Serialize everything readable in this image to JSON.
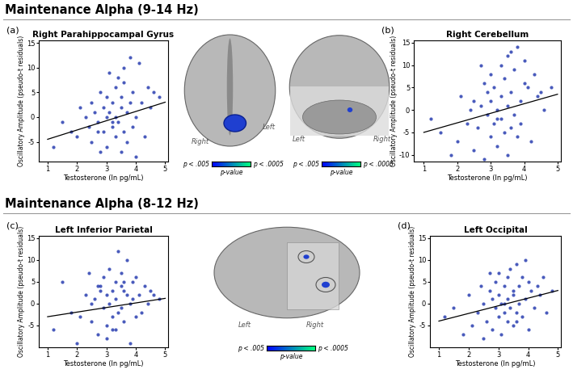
{
  "sections": [
    "Maintenance Alpha (9-14 Hz)",
    "Maintenance Alpha (8-12 Hz)"
  ],
  "chart_data": [
    {
      "type": "scatter",
      "panel": "(a)",
      "title": "Right Parahippocampal Gyrus",
      "x_label": "Testosterone (ln pg/mL)",
      "y_label": "Oscillatory Amplitude (pseudo-t residuals)",
      "color": "#2a3eb1",
      "x": [
        1.2,
        1.5,
        1.8,
        2.0,
        2.1,
        2.3,
        2.4,
        2.5,
        2.5,
        2.6,
        2.7,
        2.8,
        2.8,
        2.9,
        2.9,
        3.0,
        3.0,
        3.0,
        3.1,
        3.1,
        3.2,
        3.2,
        3.3,
        3.3,
        3.3,
        3.4,
        3.4,
        3.5,
        3.5,
        3.5,
        3.6,
        3.6,
        3.7,
        3.7,
        3.8,
        3.8,
        3.9,
        3.9,
        4.0,
        4.0,
        4.1,
        4.2,
        4.3,
        4.4,
        4.5,
        4.6,
        4.8,
        3.2,
        2.7,
        3.6
      ],
      "y": [
        -6,
        -1,
        -3,
        -4,
        2,
        0,
        -2,
        3,
        -5,
        1,
        -1,
        5,
        -7,
        2,
        -3,
        0,
        4,
        -6,
        1,
        9,
        -2,
        3,
        -4,
        6,
        0,
        -1,
        8,
        2,
        -7,
        4,
        -3,
        10,
        1,
        -5,
        3,
        12,
        -2,
        5,
        0,
        -8,
        11,
        3,
        -4,
        6,
        2,
        5,
        4,
        -1,
        -3,
        7
      ],
      "trend_line": {
        "x": [
          1,
          5
        ],
        "y": [
          -4.5,
          3
        ]
      },
      "xlim": [
        0.7,
        5.1
      ],
      "ylim": [
        -9,
        15.5
      ],
      "xticks": [
        1,
        2,
        3,
        4,
        5
      ],
      "yticks": [
        -5,
        0,
        5,
        10,
        15
      ]
    },
    {
      "type": "scatter",
      "panel": "(b)",
      "title": "Right Cerebellum",
      "x_label": "Testosterone (ln pg/mL)",
      "y_label": "Oscillatory Amplitude (pseudo-t residuals)",
      "color": "#2a3eb1",
      "x": [
        1.2,
        1.5,
        1.8,
        2.0,
        2.1,
        2.3,
        2.4,
        2.5,
        2.5,
        2.6,
        2.7,
        2.8,
        2.8,
        2.9,
        2.9,
        3.0,
        3.0,
        3.0,
        3.1,
        3.1,
        3.2,
        3.2,
        3.3,
        3.3,
        3.3,
        3.4,
        3.4,
        3.5,
        3.5,
        3.5,
        3.6,
        3.6,
        3.7,
        3.7,
        3.8,
        3.8,
        3.9,
        3.9,
        4.0,
        4.0,
        4.1,
        4.2,
        4.3,
        4.4,
        4.5,
        4.6,
        4.8,
        3.2,
        2.7,
        3.6
      ],
      "y": [
        -2,
        -5,
        -10,
        -7,
        3,
        -3,
        0,
        -9,
        2,
        -4,
        1,
        6,
        -11,
        -1,
        4,
        -6,
        2,
        8,
        -3,
        5,
        -8,
        0,
        10,
        -2,
        3,
        7,
        -5,
        1,
        -10,
        12,
        -4,
        4,
        9,
        -1,
        -6,
        14,
        2,
        -3,
        11,
        6,
        5,
        -7,
        8,
        3,
        4,
        0,
        5,
        -2,
        10,
        13
      ],
      "trend_line": {
        "x": [
          1,
          5
        ],
        "y": [
          -5,
          3.5
        ]
      },
      "xlim": [
        0.7,
        5.1
      ],
      "ylim": [
        -11.5,
        15.5
      ],
      "xticks": [
        1,
        2,
        3,
        4,
        5
      ],
      "yticks": [
        -10,
        -5,
        0,
        5,
        10,
        15
      ]
    },
    {
      "type": "scatter",
      "panel": "(c)",
      "title": "Left Inferior Parietal",
      "x_label": "Testosterone (ln pg/mL)",
      "y_label": "Oscillatory Amplitude (pseudo-t residuals)",
      "color": "#2a3eb1",
      "x": [
        1.2,
        1.5,
        1.8,
        2.0,
        2.1,
        2.3,
        2.4,
        2.5,
        2.5,
        2.6,
        2.7,
        2.8,
        2.8,
        2.9,
        2.9,
        3.0,
        3.0,
        3.0,
        3.1,
        3.1,
        3.2,
        3.2,
        3.3,
        3.3,
        3.3,
        3.4,
        3.4,
        3.5,
        3.5,
        3.5,
        3.6,
        3.6,
        3.7,
        3.7,
        3.8,
        3.8,
        3.9,
        3.9,
        4.0,
        4.0,
        4.1,
        4.2,
        4.3,
        4.4,
        4.5,
        4.6,
        4.8,
        3.2,
        2.7,
        3.6
      ],
      "y": [
        -6,
        5,
        -2,
        -9,
        -3,
        2,
        7,
        -4,
        0,
        1,
        -7,
        4,
        3,
        -1,
        6,
        -5,
        2,
        -8,
        0,
        8,
        3,
        -3,
        5,
        -6,
        1,
        12,
        -2,
        4,
        -1,
        7,
        3,
        -4,
        2,
        10,
        0,
        -9,
        5,
        1,
        -3,
        6,
        2,
        -2,
        4,
        0,
        3,
        2,
        1,
        -6,
        4,
        5
      ],
      "trend_line": {
        "x": [
          1,
          5
        ],
        "y": [
          -3,
          1.2
        ]
      },
      "xlim": [
        0.7,
        5.1
      ],
      "ylim": [
        -10,
        15.5
      ],
      "xticks": [
        1,
        2,
        3,
        4,
        5
      ],
      "yticks": [
        -5,
        0,
        5,
        10,
        15
      ]
    },
    {
      "type": "scatter",
      "panel": "(d)",
      "title": "Left Occipital",
      "x_label": "Testosterone (ln pg/mL)",
      "y_label": "Oscillatory Amplitude (pseudo-t residuals)",
      "color": "#2a3eb1",
      "x": [
        1.2,
        1.5,
        1.8,
        2.0,
        2.1,
        2.3,
        2.4,
        2.5,
        2.5,
        2.6,
        2.7,
        2.8,
        2.8,
        2.9,
        2.9,
        3.0,
        3.0,
        3.0,
        3.1,
        3.1,
        3.2,
        3.2,
        3.3,
        3.3,
        3.3,
        3.4,
        3.4,
        3.5,
        3.5,
        3.5,
        3.6,
        3.6,
        3.7,
        3.7,
        3.8,
        3.8,
        3.9,
        3.9,
        4.0,
        4.0,
        4.1,
        4.2,
        4.3,
        4.4,
        4.5,
        4.6,
        4.8,
        3.2,
        2.7,
        3.6
      ],
      "y": [
        -3,
        -1,
        -7,
        2,
        -5,
        -2,
        4,
        0,
        -8,
        -4,
        3,
        1,
        -6,
        5,
        -1,
        2,
        -3,
        7,
        0,
        -7,
        4,
        -2,
        6,
        1,
        -4,
        8,
        -1,
        3,
        -5,
        2,
        9,
        -2,
        4,
        0,
        6,
        -3,
        10,
        1,
        -6,
        5,
        3,
        -1,
        4,
        2,
        6,
        -2,
        3,
        0,
        7,
        -4
      ],
      "trend_line": {
        "x": [
          1,
          5
        ],
        "y": [
          -4,
          3
        ]
      },
      "xlim": [
        0.7,
        5.1
      ],
      "ylim": [
        -10,
        15.5
      ],
      "xticks": [
        1,
        2,
        3,
        4,
        5
      ],
      "yticks": [
        -5,
        0,
        5,
        10,
        15
      ]
    }
  ],
  "brain_views": [
    {
      "labels": [
        "Right",
        "Left"
      ]
    },
    {
      "labels": [
        "Left",
        "Right"
      ]
    },
    {
      "labels": [
        "Left",
        "Right"
      ]
    }
  ],
  "colorbar": {
    "label": "p-value",
    "ends": [
      "p < .005",
      "p < .0005"
    ]
  }
}
